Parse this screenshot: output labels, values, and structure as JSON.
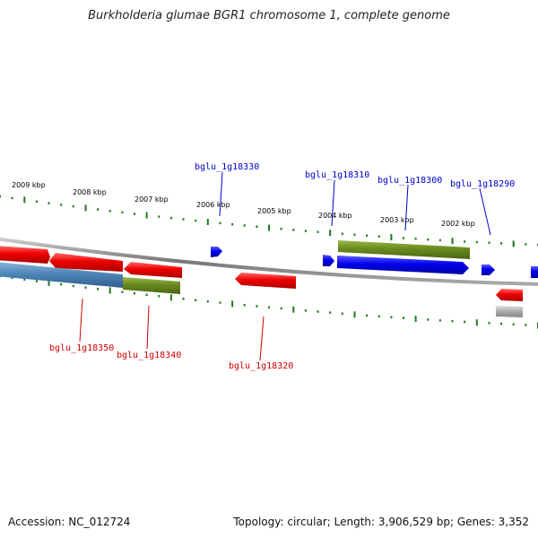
{
  "title": "Burkholderia glumae BGR1 chromosome 1, complete genome",
  "accession_text": "Accession: NC_012724",
  "summary_text": "Topology: circular; Length: 3,906,529 bp; Genes: 3,352",
  "kbp_labels": [
    "2009 kbp",
    "2008 kbp",
    "2007 kbp",
    "2006 kbp",
    "2005 kbp",
    "2004 kbp",
    "2003 kbp",
    "2002 kbp"
  ],
  "top_labels": [
    "bglu_1g18330",
    "bglu_1g18310",
    "bglu_1g18300",
    "bglu_1g18290"
  ],
  "bottom_labels": [
    "bglu_1g18350",
    "bglu_1g18340",
    "bglu_1g18320"
  ],
  "colors": {
    "forward_gene": "#0000ee",
    "reverse_gene": "#ee0000",
    "cog_green": "#6a8a1e",
    "cog_blue": "#4f86b8",
    "ticks": "#1a7a1a",
    "backbone": "#888888",
    "pseudo": "#aaaaaa",
    "top_label": "#0000cc",
    "bottom_label": "#cc0000"
  }
}
